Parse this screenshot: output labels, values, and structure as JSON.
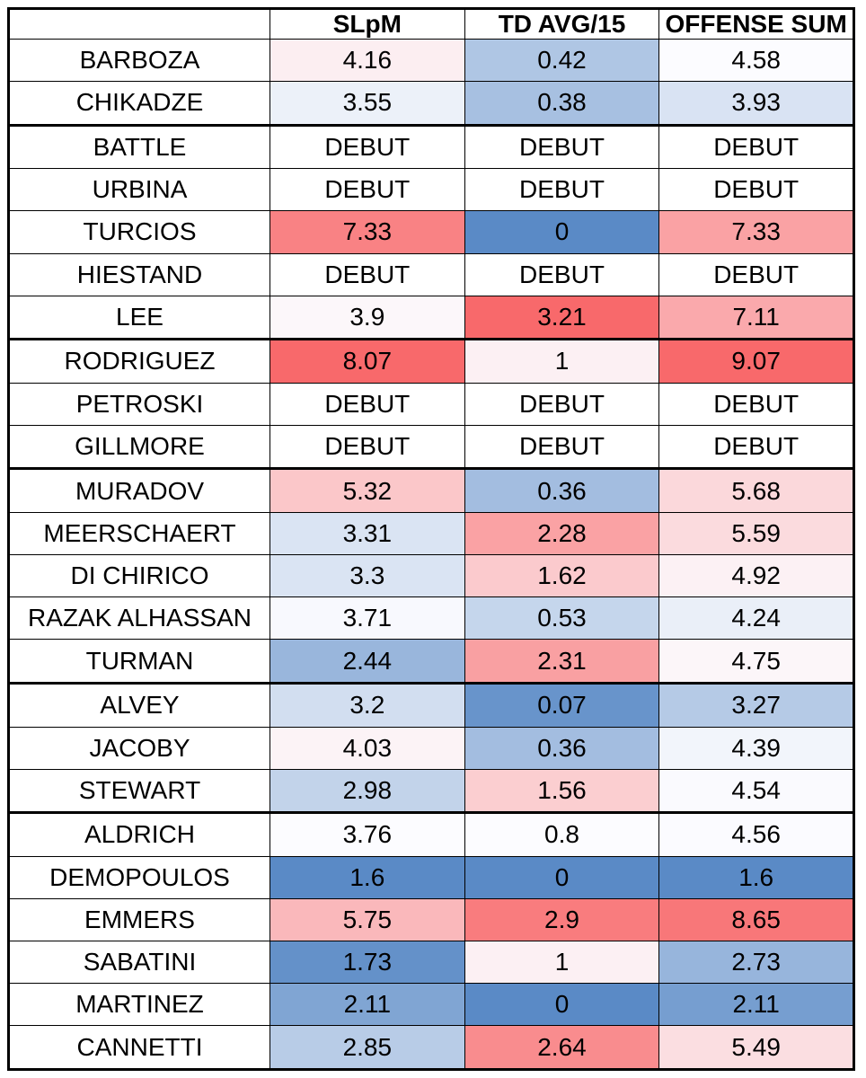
{
  "chart_data": {
    "type": "table",
    "columns": [
      "",
      "SLpM",
      "TD AVG/15",
      "OFFENSE SUM"
    ],
    "rows": [
      {
        "name": "BARBOZA",
        "values": [
          4.16,
          0.42,
          4.58
        ]
      },
      {
        "name": "CHIKADZE",
        "values": [
          3.55,
          0.38,
          3.93
        ]
      },
      {
        "name": "BATTLE",
        "values": [
          "DEBUT",
          "DEBUT",
          "DEBUT"
        ]
      },
      {
        "name": "URBINA",
        "values": [
          "DEBUT",
          "DEBUT",
          "DEBUT"
        ]
      },
      {
        "name": "TURCIOS",
        "values": [
          7.33,
          0,
          7.33
        ]
      },
      {
        "name": "HIESTAND",
        "values": [
          "DEBUT",
          "DEBUT",
          "DEBUT"
        ]
      },
      {
        "name": "LEE",
        "values": [
          3.9,
          3.21,
          7.11
        ]
      },
      {
        "name": "RODRIGUEZ",
        "values": [
          8.07,
          1,
          9.07
        ]
      },
      {
        "name": "PETROSKI",
        "values": [
          "DEBUT",
          "DEBUT",
          "DEBUT"
        ]
      },
      {
        "name": "GILLMORE",
        "values": [
          "DEBUT",
          "DEBUT",
          "DEBUT"
        ]
      },
      {
        "name": "MURADOV",
        "values": [
          5.32,
          0.36,
          5.68
        ]
      },
      {
        "name": "MEERSCHAERT",
        "values": [
          3.31,
          2.28,
          5.59
        ]
      },
      {
        "name": "DI CHIRICO",
        "values": [
          3.3,
          1.62,
          4.92
        ]
      },
      {
        "name": "RAZAK ALHASSAN",
        "values": [
          3.71,
          0.53,
          4.24
        ]
      },
      {
        "name": "TURMAN",
        "values": [
          2.44,
          2.31,
          4.75
        ]
      },
      {
        "name": "ALVEY",
        "values": [
          3.2,
          0.07,
          3.27
        ]
      },
      {
        "name": "JACOBY",
        "values": [
          4.03,
          0.36,
          4.39
        ]
      },
      {
        "name": "STEWART",
        "values": [
          2.98,
          1.56,
          4.54
        ]
      },
      {
        "name": "ALDRICH",
        "values": [
          3.76,
          0.8,
          4.56
        ]
      },
      {
        "name": "DEMOPOULOS",
        "values": [
          1.6,
          0,
          1.6
        ]
      },
      {
        "name": "EMMERS",
        "values": [
          5.75,
          2.9,
          8.65
        ]
      },
      {
        "name": "SABATINI",
        "values": [
          1.73,
          1,
          2.73
        ]
      },
      {
        "name": "MARTINEZ",
        "values": [
          2.11,
          0,
          2.11
        ]
      },
      {
        "name": "CANNETTI",
        "values": [
          2.85,
          2.64,
          5.49
        ]
      }
    ],
    "group_start_rows": [
      2,
      7,
      10,
      15,
      18
    ],
    "color_scale": {
      "low": "#5a8ac6",
      "mid": "#fcfcff",
      "high": "#f8696b"
    },
    "column_scale_centers": [
      3.76,
      0.8,
      4.58
    ]
  }
}
